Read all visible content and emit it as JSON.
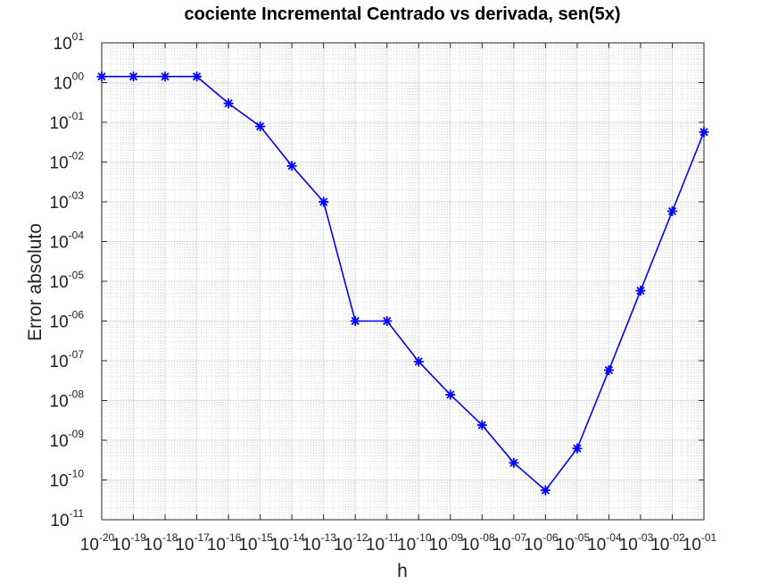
{
  "chart_data": {
    "type": "line",
    "title": "cociente Incremental Centrado vs derivada, sen(5x)",
    "xlabel": "h",
    "ylabel": "Error absoluto",
    "xscale": "log",
    "yscale": "log",
    "xlim": [
      1e-20,
      0.1
    ],
    "ylim": [
      1e-11,
      10
    ],
    "grid": true,
    "minor_grid": true,
    "x_ticks": [
      {
        "value": 1e-20,
        "base": "10",
        "exp": "-20"
      },
      {
        "value": 1e-19,
        "base": "10",
        "exp": "-19"
      },
      {
        "value": 1e-18,
        "base": "10",
        "exp": "-18"
      },
      {
        "value": 1e-17,
        "base": "10",
        "exp": "-17"
      },
      {
        "value": 1e-16,
        "base": "10",
        "exp": "-16"
      },
      {
        "value": 1e-15,
        "base": "10",
        "exp": "-15"
      },
      {
        "value": 1e-14,
        "base": "10",
        "exp": "-14"
      },
      {
        "value": 1e-13,
        "base": "10",
        "exp": "-13"
      },
      {
        "value": 1e-12,
        "base": "10",
        "exp": "-12"
      },
      {
        "value": 1e-11,
        "base": "10",
        "exp": "-11"
      },
      {
        "value": 1e-10,
        "base": "10",
        "exp": "-10"
      },
      {
        "value": 1e-09,
        "base": "10",
        "exp": "-09"
      },
      {
        "value": 1e-08,
        "base": "10",
        "exp": "-08"
      },
      {
        "value": 1e-07,
        "base": "10",
        "exp": "-07"
      },
      {
        "value": 1e-06,
        "base": "10",
        "exp": "-06"
      },
      {
        "value": 1e-05,
        "base": "10",
        "exp": "-05"
      },
      {
        "value": 0.0001,
        "base": "10",
        "exp": "-04"
      },
      {
        "value": 0.001,
        "base": "10",
        "exp": "-03"
      },
      {
        "value": 0.01,
        "base": "10",
        "exp": "-02"
      },
      {
        "value": 0.1,
        "base": "10",
        "exp": "-01"
      }
    ],
    "y_ticks": [
      {
        "value": 1e-11,
        "base": "10",
        "exp": "-11"
      },
      {
        "value": 1e-10,
        "base": "10",
        "exp": "-10"
      },
      {
        "value": 1e-09,
        "base": "10",
        "exp": "-09"
      },
      {
        "value": 1e-08,
        "base": "10",
        "exp": "-08"
      },
      {
        "value": 1e-07,
        "base": "10",
        "exp": "-07"
      },
      {
        "value": 1e-06,
        "base": "10",
        "exp": "-06"
      },
      {
        "value": 1e-05,
        "base": "10",
        "exp": "-05"
      },
      {
        "value": 0.0001,
        "base": "10",
        "exp": "-04"
      },
      {
        "value": 0.001,
        "base": "10",
        "exp": "-03"
      },
      {
        "value": 0.01,
        "base": "10",
        "exp": "-02"
      },
      {
        "value": 0.1,
        "base": "10",
        "exp": "-01"
      },
      {
        "value": 1,
        "base": "10",
        "exp": "00"
      },
      {
        "value": 10,
        "base": "10",
        "exp": "01"
      }
    ],
    "series": [
      {
        "color": "#0000ff",
        "marker": "asterisk",
        "x": [
          1e-20,
          1e-19,
          1e-18,
          1e-17,
          1e-16,
          1e-15,
          1e-14,
          1e-13,
          1e-12,
          1e-11,
          1e-10,
          1e-09,
          1e-08,
          1e-07,
          1e-06,
          1e-05,
          0.0001,
          0.001,
          0.01,
          0.1
        ],
        "y": [
          1.42,
          1.42,
          1.42,
          1.42,
          0.3,
          0.079,
          0.008,
          0.001,
          1e-06,
          1e-06,
          9.5e-08,
          1.4e-08,
          2.4e-09,
          2.7e-10,
          5.5e-11,
          6.2e-10,
          5.8e-08,
          5.8e-06,
          0.00058,
          0.057
        ]
      }
    ]
  },
  "colors": {
    "series": "#0000ff",
    "axis": "#262626",
    "grid_major": "#d9d9d9",
    "grid_minor": "#c8c8c8",
    "background": "#ffffff"
  }
}
